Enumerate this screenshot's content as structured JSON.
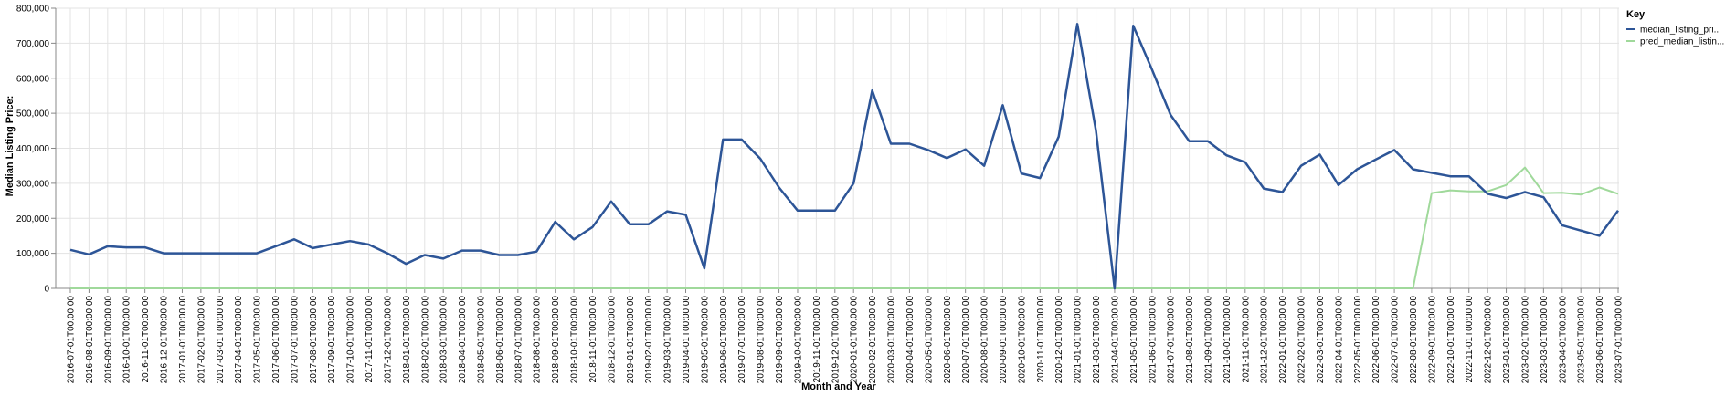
{
  "chart_data": {
    "type": "line",
    "xlabel": "Month and Year",
    "ylabel": "Median Listing Price:",
    "ylim": [
      0,
      800000
    ],
    "yticks": [
      "0",
      "100,000",
      "200,000",
      "300,000",
      "400,000",
      "500,000",
      "600,000",
      "700,000",
      "800,000"
    ],
    "grid": true,
    "legend_position": "top-right",
    "legend_title": "Key",
    "x": [
      "2016-07-01T00:00:00",
      "2016-08-01T00:00:00",
      "2016-09-01T00:00:00",
      "2016-10-01T00:00:00",
      "2016-11-01T00:00:00",
      "2016-12-01T00:00:00",
      "2017-01-01T00:00:00",
      "2017-02-01T00:00:00",
      "2017-03-01T00:00:00",
      "2017-04-01T00:00:00",
      "2017-05-01T00:00:00",
      "2017-06-01T00:00:00",
      "2017-07-01T00:00:00",
      "2017-08-01T00:00:00",
      "2017-09-01T00:00:00",
      "2017-10-01T00:00:00",
      "2017-11-01T00:00:00",
      "2017-12-01T00:00:00",
      "2018-01-01T00:00:00",
      "2018-02-01T00:00:00",
      "2018-03-01T00:00:00",
      "2018-04-01T00:00:00",
      "2018-05-01T00:00:00",
      "2018-06-01T00:00:00",
      "2018-07-01T00:00:00",
      "2018-08-01T00:00:00",
      "2018-09-01T00:00:00",
      "2018-10-01T00:00:00",
      "2018-11-01T00:00:00",
      "2018-12-01T00:00:00",
      "2019-01-01T00:00:00",
      "2019-02-01T00:00:00",
      "2019-03-01T00:00:00",
      "2019-04-01T00:00:00",
      "2019-05-01T00:00:00",
      "2019-06-01T00:00:00",
      "2019-07-01T00:00:00",
      "2019-08-01T00:00:00",
      "2019-09-01T00:00:00",
      "2019-10-01T00:00:00",
      "2019-11-01T00:00:00",
      "2019-12-01T00:00:00",
      "2020-01-01T00:00:00",
      "2020-02-01T00:00:00",
      "2020-03-01T00:00:00",
      "2020-04-01T00:00:00",
      "2020-05-01T00:00:00",
      "2020-06-01T00:00:00",
      "2020-07-01T00:00:00",
      "2020-08-01T00:00:00",
      "2020-09-01T00:00:00",
      "2020-10-01T00:00:00",
      "2020-11-01T00:00:00",
      "2020-12-01T00:00:00",
      "2021-01-01T00:00:00",
      "2021-03-01T00:00:00",
      "2021-04-01T00:00:00",
      "2021-05-01T00:00:00",
      "2021-06-01T00:00:00",
      "2021-07-01T00:00:00",
      "2021-08-01T00:00:00",
      "2021-09-01T00:00:00",
      "2021-10-01T00:00:00",
      "2021-11-01T00:00:00",
      "2021-12-01T00:00:00",
      "2022-01-01T00:00:00",
      "2022-02-01T00:00:00",
      "2022-03-01T00:00:00",
      "2022-04-01T00:00:00",
      "2022-05-01T00:00:00",
      "2022-06-01T00:00:00",
      "2022-07-01T00:00:00",
      "2022-08-01T00:00:00",
      "2022-09-01T00:00:00",
      "2022-10-01T00:00:00",
      "2022-11-01T00:00:00",
      "2022-12-01T00:00:00",
      "2023-01-01T00:00:00",
      "2023-02-01T00:00:00",
      "2023-03-01T00:00:00",
      "2023-04-01T00:00:00",
      "2023-05-01T00:00:00",
      "2023-06-01T00:00:00",
      "2023-07-01T00:00:00"
    ],
    "series": [
      {
        "name": "median_listing_pri...",
        "color": "#2d5597",
        "values": [
          110000,
          97000,
          120000,
          117000,
          117000,
          100000,
          100000,
          100000,
          100000,
          100000,
          100000,
          120000,
          140000,
          115000,
          125000,
          135000,
          125000,
          100000,
          70000,
          95000,
          85000,
          108000,
          108000,
          95000,
          95000,
          105000,
          190000,
          140000,
          175000,
          248000,
          183000,
          183000,
          220000,
          210000,
          57000,
          425000,
          425000,
          370000,
          288000,
          222000,
          222000,
          222000,
          300000,
          565000,
          413000,
          413000,
          395000,
          372000,
          397000,
          350000,
          523000,
          328000,
          315000,
          433000,
          755000,
          450000,
          0,
          750000,
          625000,
          495000,
          420000,
          420000,
          380000,
          360000,
          285000,
          275000,
          350000,
          382000,
          295000,
          340000,
          368000,
          395000,
          340000,
          330000,
          320000,
          320000,
          270000,
          258000,
          275000,
          260000,
          180000,
          165000,
          150000,
          222000
        ]
      },
      {
        "name": "pred_median_listin...",
        "color": "#a0d99b",
        "values": [
          0,
          0,
          0,
          0,
          0,
          0,
          0,
          0,
          0,
          0,
          0,
          0,
          0,
          0,
          0,
          0,
          0,
          0,
          0,
          0,
          0,
          0,
          0,
          0,
          0,
          0,
          0,
          0,
          0,
          0,
          0,
          0,
          0,
          0,
          0,
          0,
          0,
          0,
          0,
          0,
          0,
          0,
          0,
          0,
          0,
          0,
          0,
          0,
          0,
          0,
          0,
          0,
          0,
          0,
          0,
          0,
          0,
          0,
          0,
          0,
          0,
          0,
          0,
          0,
          0,
          0,
          0,
          0,
          0,
          0,
          0,
          0,
          0,
          272000,
          280000,
          277000,
          277000,
          295000,
          345000,
          272000,
          273000,
          268000,
          288000,
          270000
        ]
      }
    ]
  }
}
